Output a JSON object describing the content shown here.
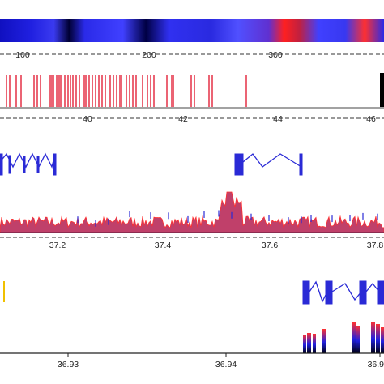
{
  "tracks": {
    "heatmap": {
      "colors": {
        "dark": "#000033",
        "blue": "#1a1aff",
        "red": "#ff2222"
      },
      "axis_labels": [
        "100",
        "200",
        "300"
      ]
    },
    "snp_ticks": {
      "bar_color": "#e0102a",
      "end_bar_color": "#000000",
      "axis_labels": [
        "40",
        "42",
        "44",
        "46"
      ]
    },
    "gene_models": {
      "color": "#2a2ad6"
    },
    "coverage": {
      "fill_color": "#c0406a",
      "line_color": "#ff3030",
      "axis_labels": [
        "37.2",
        "37.4",
        "37.6",
        "37.8"
      ]
    },
    "zoom_detail": {
      "marker_color": "#f0c000",
      "exon_color": "#2a2ad6",
      "axis_labels": [
        "36.93",
        "36.94",
        "36.9"
      ]
    }
  }
}
